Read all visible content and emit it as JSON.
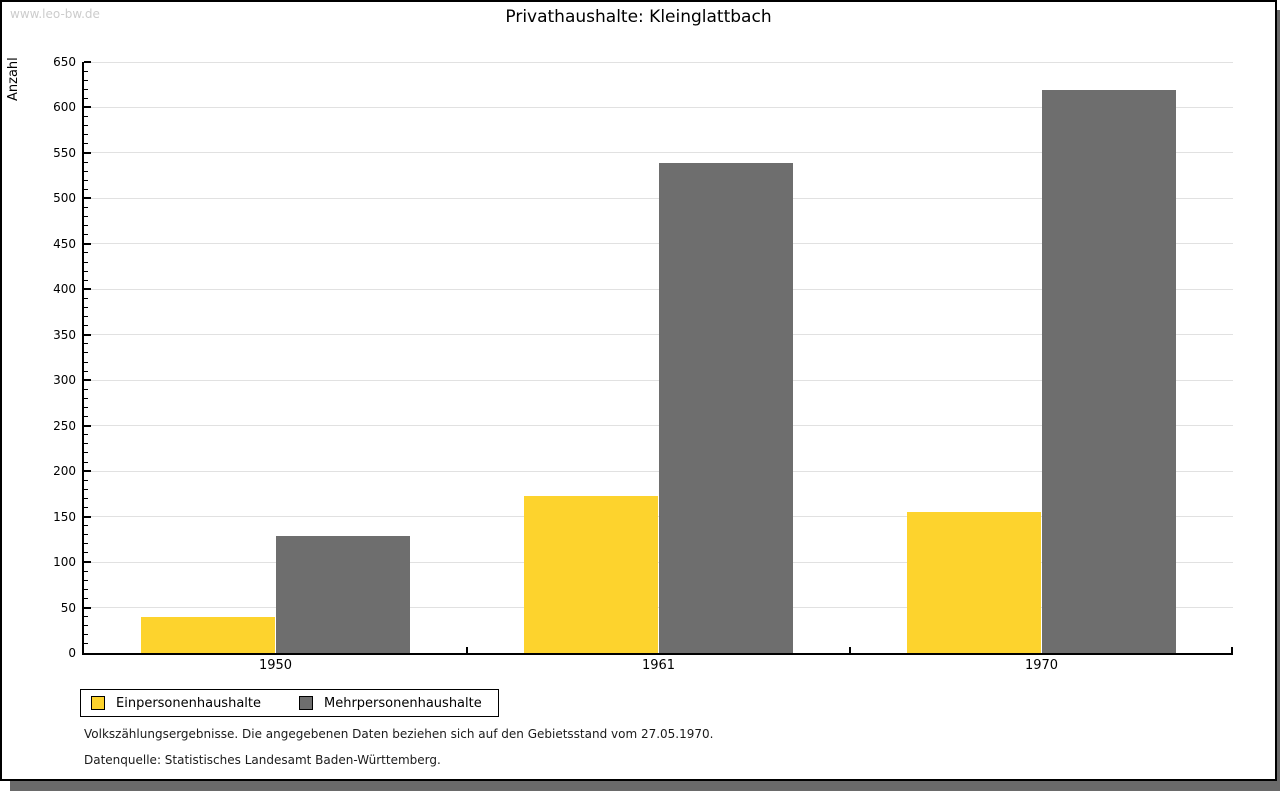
{
  "watermark": "www.leo-bw.de",
  "chart_data": {
    "type": "bar",
    "title": "Privathaushalte: Kleinglattbach",
    "xlabel": "",
    "ylabel": "Anzahl",
    "categories": [
      "1950",
      "1961",
      "1970"
    ],
    "series": [
      {
        "name": "Einpersonenhaushalte",
        "color": "#fdd32d",
        "values": [
          40,
          173,
          155
        ]
      },
      {
        "name": "Mehrpersonenhaushalte",
        "color": "#6e6e6e",
        "values": [
          129,
          539,
          619
        ]
      }
    ],
    "ylim": [
      0,
      650
    ],
    "y_major_step": 50,
    "y_minor_step": 10,
    "grid": true,
    "legend_position": "bottom-left",
    "gridline_color": "#e1e1e1"
  },
  "footnotes": [
    "Volkszählungsergebnisse. Die angegebenen Daten beziehen sich auf den Gebietsstand vom 27.05.1970.",
    "Datenquelle: Statistisches Landesamt Baden-Württemberg."
  ]
}
